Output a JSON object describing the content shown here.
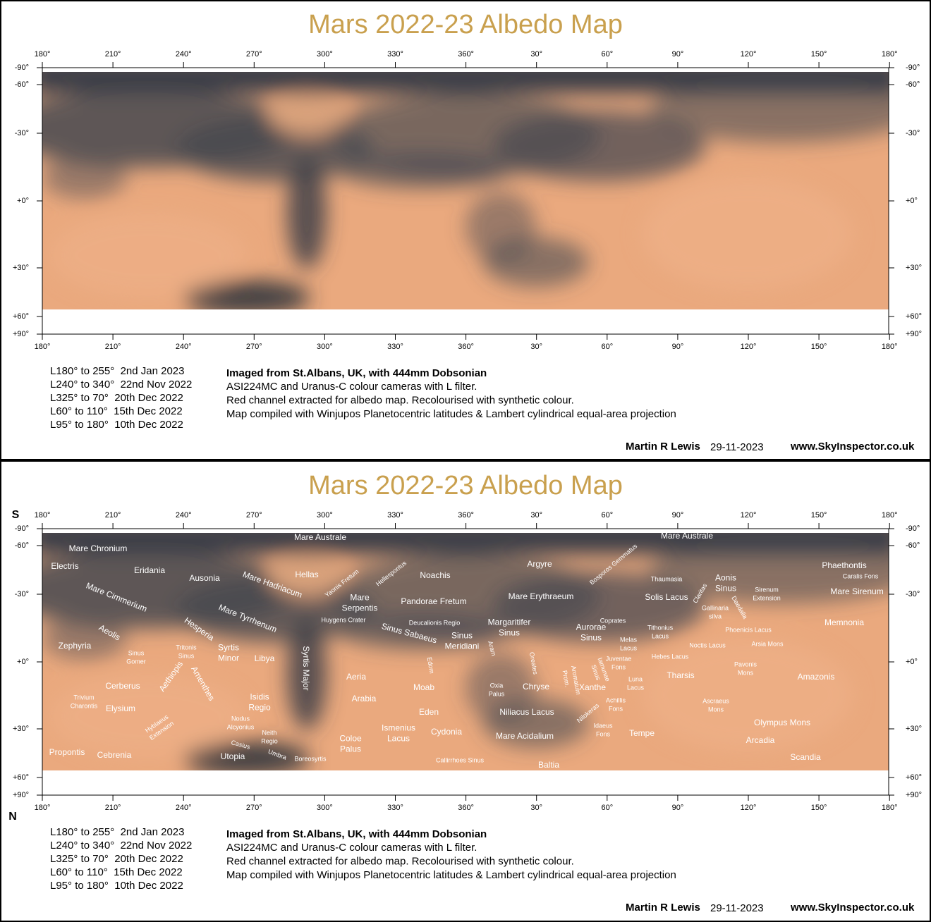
{
  "title": "Mars 2022-23 Albedo Map",
  "longitude_ticks": [
    "180°",
    "210°",
    "240°",
    "270°",
    "300°",
    "330°",
    "360°",
    "30°",
    "60°",
    "90°",
    "120°",
    "150°",
    "180°"
  ],
  "latitude_ticks": [
    "-90°",
    "-60°",
    "-30°",
    "+0°",
    "+30°",
    "+60°",
    "+90°"
  ],
  "observations": [
    "L180° to 255°  2nd Jan 2023",
    "L240° to 340°  22nd Nov 2022",
    "L325° to 70°  20th Dec 2022",
    "L60° to 110°  15th Dec 2022",
    "L95° to 180°  10th Dec 2022"
  ],
  "imaging": {
    "heading": "Imaged from St.Albans, UK, with 444mm Dobsonian",
    "lines": [
      "ASI224MC and Uranus-C colour cameras with L filter.",
      "Red channel extracted for albedo map. Recolourised with synthetic colour.",
      "Map compiled with Winjupos Planetocentric latitudes & Lambert cylindrical equal-area projection"
    ]
  },
  "credit": {
    "author": "Martin R Lewis",
    "date": "29-11-2023",
    "website": "www.SkyInspector.co.uk"
  },
  "labeled_map": {
    "south": "S",
    "north": "N",
    "labels": [
      [
        "Mare Chronium"
      ],
      [
        "Mare Australe"
      ],
      [
        "Mare Australe"
      ],
      [
        "Electris"
      ],
      [
        "Eridania"
      ],
      [
        "Ausonia"
      ],
      [
        "Mare Hadriacum"
      ],
      [
        "Hellas"
      ],
      [
        "Yaonis Fretum"
      ],
      [
        "Hellespontus"
      ],
      [
        "Noachis"
      ],
      [
        "Argyre"
      ],
      [
        "Bosporos Gemmatus"
      ],
      [
        "Thaumasia"
      ],
      [
        "Claritas"
      ],
      [
        "Aonis",
        "Sinus"
      ],
      [
        "Sirenum",
        "Extension"
      ],
      [
        "Phaethontis"
      ],
      [
        "Caralis Fons"
      ],
      [
        "Mare Sirenum"
      ],
      [
        "Mare Cimmerium"
      ],
      [
        "Mare",
        "Serpentis"
      ],
      [
        "Pandorae Fretum"
      ],
      [
        "Mare Erythraeum"
      ],
      [
        "Solis Lacus"
      ],
      [
        "Gallinaria",
        "silva"
      ],
      [
        "Daedalia"
      ],
      [
        "Mare Tyrrhenum"
      ],
      [
        "Hesperia"
      ],
      [
        "Huygens Crater"
      ],
      [
        "Deucalionis Regio"
      ],
      [
        "Margaritifer",
        "Sinus"
      ],
      [
        "Coprates"
      ],
      [
        "Aurorae",
        "Sinus"
      ],
      [
        "Aeolis"
      ],
      [
        "Sinus Sabaeus"
      ],
      [
        "Tithonius",
        "Lacus"
      ],
      [
        "Phoenicis Lacus"
      ],
      [
        "Memnonia"
      ],
      [
        "Sinus",
        "Meridiani"
      ],
      [
        "Zephyria"
      ],
      [
        "Sinus",
        "Gomer"
      ],
      [
        "Tritonis",
        "Sinus"
      ],
      [
        "Syrtis",
        "Minor"
      ],
      [
        "Melas",
        "Lacus"
      ],
      [
        "Noctis Lacus"
      ],
      [
        "Arsia Mons"
      ],
      [
        "Libya"
      ],
      [
        "Syrtis Major"
      ],
      [
        "Aram"
      ],
      [
        "Edom"
      ],
      [
        "Oreates"
      ],
      [
        "Iamunae",
        "Sinus"
      ],
      [
        "Juventae",
        "Fons"
      ],
      [
        "Hebes Lacus"
      ],
      [
        "Pavonis",
        "Mons"
      ],
      [
        "Aethiopis"
      ],
      [
        "Amenthes"
      ],
      [
        "Aeria"
      ],
      [
        "Prom."
      ],
      [
        "Aromatum"
      ],
      [
        "Xanthe"
      ],
      [
        "Luna",
        "Lacus"
      ],
      [
        "Tharsis"
      ],
      [
        "Amazonis"
      ],
      [
        "Cerberus"
      ],
      [
        "Oxia",
        "Palus"
      ],
      [
        "Chryse"
      ],
      [
        "Moab"
      ],
      [
        "Trivium",
        "Charontis"
      ],
      [
        "Isidis",
        "Regio"
      ],
      [
        "Arabia"
      ],
      [
        "Achillis",
        "Fons"
      ],
      [
        "Ascraeus",
        "Mons"
      ],
      [
        "Elysium"
      ],
      [
        "Eden"
      ],
      [
        "Niliacus Lacus"
      ],
      [
        "Hyblaeus",
        "Extension"
      ],
      [
        "Nilokeras"
      ],
      [
        "Idaeus",
        "Fons"
      ],
      [
        "Nodus",
        "Alcyonius"
      ],
      [
        "Olympus Mons"
      ],
      [
        "Ismenius",
        "Lacus"
      ],
      [
        "Cydonia"
      ],
      [
        "Neith",
        "Regio"
      ],
      [
        "Casius"
      ],
      [
        "Coloe",
        "Palus"
      ],
      [
        "Mare Acidalium"
      ],
      [
        "Tempe"
      ],
      [
        "Arcadia"
      ],
      [
        "Propontis"
      ],
      [
        "Cebrenia"
      ],
      [
        "Umbra"
      ],
      [
        "Utopia"
      ],
      [
        "Boreosyrtis"
      ],
      [
        "Callirrhoes Sinus"
      ],
      [
        "Scandia"
      ],
      [
        "Baltia"
      ]
    ]
  }
}
